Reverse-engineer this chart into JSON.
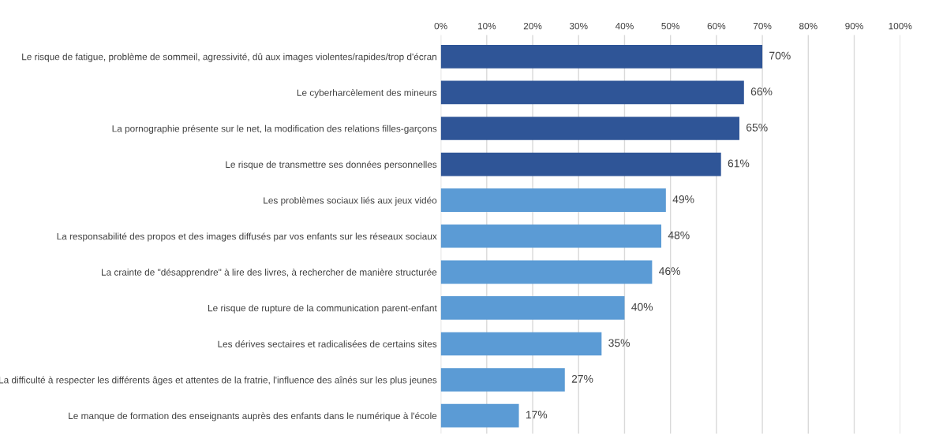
{
  "chart_data": {
    "type": "bar",
    "orientation": "horizontal",
    "categories": [
      "Le risque de fatigue, problème de sommeil, agressivité, dû aux images violentes/rapides/trop d'écran",
      "Le cyberharcèlement des mineurs",
      "La pornographie présente sur le net, la modification des relations filles-garçons",
      "Le risque de transmettre ses données personnelles",
      "Les problèmes sociaux liés aux jeux vidéo",
      "La responsabilité des propos et des images diffusés par vos enfants sur les réseaux sociaux",
      "La crainte de \"désapprendre\" à lire des livres, à rechercher de manière structurée",
      "Le risque de rupture de la communication parent-enfant",
      "Les dérives sectaires et radicalisées de certains sites",
      "La difficulté à respecter les différents âges et attentes de la fratrie, l'influence des aînés sur les plus jeunes",
      "Le manque de formation des enseignants auprès des enfants dans le numérique à l'école"
    ],
    "values": [
      70,
      66,
      65,
      61,
      49,
      48,
      46,
      40,
      35,
      27,
      17
    ],
    "colors": [
      "#2f5597",
      "#2f5597",
      "#2f5597",
      "#2f5597",
      "#5b9bd5",
      "#5b9bd5",
      "#5b9bd5",
      "#5b9bd5",
      "#5b9bd5",
      "#5b9bd5",
      "#5b9bd5"
    ],
    "value_labels": [
      "70%",
      "66%",
      "65%",
      "61%",
      "49%",
      "48%",
      "46%",
      "40%",
      "35%",
      "27%",
      "17%"
    ],
    "xlim": [
      0,
      100
    ],
    "xticks": [
      {
        "value": 0,
        "label": "0%"
      },
      {
        "value": 10,
        "label": "10%"
      },
      {
        "value": 20,
        "label": "20%"
      },
      {
        "value": 30,
        "label": "30%"
      },
      {
        "value": 40,
        "label": "40%"
      },
      {
        "value": 50,
        "label": "50%"
      },
      {
        "value": 60,
        "label": "60%"
      },
      {
        "value": 70,
        "label": "70%"
      },
      {
        "value": 80,
        "label": "80%"
      },
      {
        "value": 90,
        "label": "90%"
      },
      {
        "value": 100,
        "label": "100%"
      }
    ],
    "grid": "x"
  }
}
